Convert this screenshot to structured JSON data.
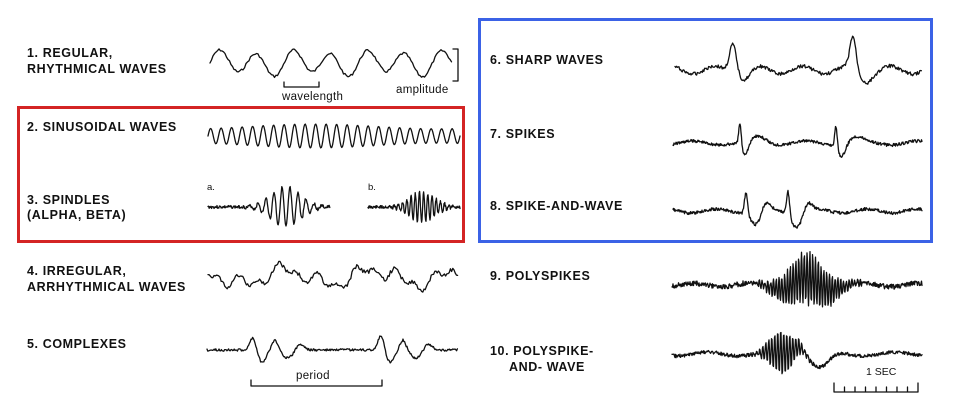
{
  "labels": {
    "l1a": "1. REGULAR,",
    "l1b": "RHYTHMICAL WAVES",
    "l2": "2. SINUSOIDAL WAVES",
    "l3a": "3. SPINDLES",
    "l3b": "(ALPHA, BETA)",
    "l4a": "4. IRREGULAR,",
    "l4b": "ARRHYTHMICAL WAVES",
    "l5": "5. COMPLEXES",
    "l6": "6. SHARP WAVES",
    "l7": "7. SPIKES",
    "l8": "8. SPIKE-AND-WAVE",
    "l9": "9. POLYSPIKES",
    "l10a": "10. POLYSPIKE-",
    "l10b": "AND- WAVE"
  },
  "annotations": {
    "wavelength": "wavelength",
    "amplitude": "amplitude",
    "a": "a.",
    "b": "b.",
    "period": "period",
    "sec": "1 SEC"
  },
  "highlight_colors": {
    "red_box": "#d42424",
    "blue_box": "#3b62e6"
  }
}
